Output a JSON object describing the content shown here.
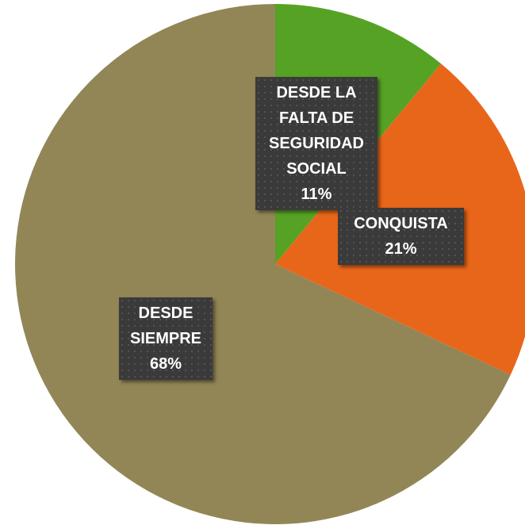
{
  "chart_data": {
    "type": "pie",
    "categories": [
      "DESDE LA FALTA DE SEGURIDAD SOCIAL",
      "CONQUISTA",
      "DESDE SIEMPRE"
    ],
    "values": [
      11,
      21,
      68
    ],
    "value_labels": [
      "11%",
      "21%",
      "68%"
    ],
    "colors": [
      "#56a225",
      "#e8661a",
      "#928657"
    ]
  }
}
